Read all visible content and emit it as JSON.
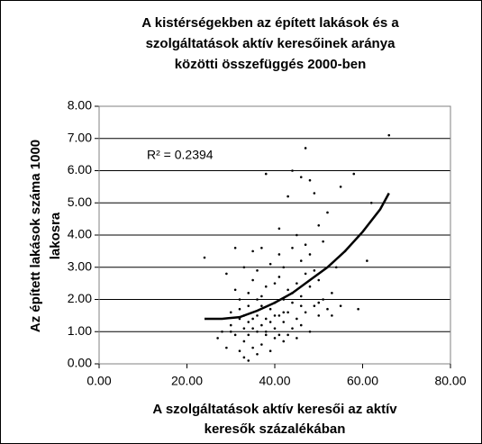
{
  "chart_data": {
    "type": "scatter",
    "title": [
      "A kistérségekben az épített lakások és a",
      "szolgáltatások aktív keresőinek aránya",
      "közötti összefüggés 2000-ben"
    ],
    "ylabel": [
      "Az épített lakások száma 1000",
      "lakosra"
    ],
    "xlabel": [
      "A szolgáltatások aktív keresői az aktív",
      "keresők százalékában"
    ],
    "annotation": "R² = 0.2394",
    "color": "#000000",
    "grid": true,
    "xlim": [
      0,
      80
    ],
    "ylim": [
      0,
      8
    ],
    "xticks": [
      {
        "value": 0,
        "label": "0.00"
      },
      {
        "value": 20,
        "label": "20.00"
      },
      {
        "value": 40,
        "label": "40.00"
      },
      {
        "value": 60,
        "label": "60.00"
      },
      {
        "value": 80,
        "label": "80.00"
      }
    ],
    "yticks": [
      {
        "value": 0,
        "label": "0.00"
      },
      {
        "value": 1,
        "label": "1.00"
      },
      {
        "value": 2,
        "label": "2.00"
      },
      {
        "value": 3,
        "label": "3.00"
      },
      {
        "value": 4,
        "label": "4.00"
      },
      {
        "value": 5,
        "label": "5.00"
      },
      {
        "value": 6,
        "label": "6.00"
      },
      {
        "value": 7,
        "label": "7.00"
      },
      {
        "value": 8,
        "label": "8.00"
      }
    ],
    "x": [
      24,
      27,
      28,
      29,
      29,
      30,
      30,
      31,
      31,
      31,
      32,
      32,
      32,
      33,
      33,
      33,
      33,
      34,
      34,
      34,
      34,
      35,
      35,
      35,
      35,
      36,
      36,
      36,
      36,
      37,
      37,
      37,
      37,
      38,
      38,
      38,
      38,
      39,
      39,
      39,
      40,
      40,
      40,
      40,
      41,
      41,
      41,
      41,
      42,
      42,
      42,
      42,
      43,
      43,
      43,
      43,
      44,
      44,
      44,
      44,
      45,
      45,
      45,
      45,
      46,
      46,
      46,
      46,
      47,
      47,
      47,
      47,
      48,
      48,
      48,
      48,
      49,
      49,
      49,
      50,
      50,
      50,
      51,
      51,
      52,
      52,
      53,
      54,
      55,
      55,
      56,
      58,
      59,
      61,
      62,
      66,
      30,
      32,
      34,
      36,
      38,
      39,
      40,
      42,
      44,
      46,
      50,
      53,
      33,
      35,
      37,
      41
    ],
    "y": [
      3.3,
      0.8,
      1.0,
      2.8,
      0.5,
      1.2,
      1.6,
      3.6,
      2.3,
      0.9,
      0.4,
      1.4,
      2.0,
      0.2,
      1.1,
      3.0,
      0.7,
      2.2,
      1.3,
      0.1,
      1.8,
      1.4,
      2.6,
      0.5,
      3.5,
      1.0,
      1.5,
      0.3,
      2.9,
      1.2,
      2.1,
      0.6,
      3.6,
      5.9,
      1.4,
      2.4,
      0.9,
      1.7,
      3.1,
      0.4,
      2.5,
      1.1,
      1.9,
      0.8,
      4.2,
      3.4,
      1.5,
      2.7,
      1.3,
      0.7,
      2.0,
      3.0,
      1.6,
      5.2,
      0.9,
      2.3,
      6.0,
      1.1,
      3.6,
      1.9,
      2.5,
      4.0,
      0.8,
      1.4,
      3.2,
      5.8,
      2.1,
      1.2,
      6.7,
      3.7,
      2.8,
      1.6,
      5.7,
      2.4,
      1.0,
      3.4,
      2.9,
      5.3,
      1.8,
      4.3,
      1.5,
      2.6,
      3.8,
      2.0,
      1.7,
      4.7,
      2.2,
      3.0,
      5.5,
      1.8,
      3.5,
      5.9,
      1.7,
      3.2,
      5.0,
      7.1,
      1.0,
      1.7,
      0.9,
      2.0,
      1.0,
      1.3,
      1.5,
      1.6,
      2.2,
      1.8,
      1.9,
      1.5,
      1.5,
      1.1,
      1.8,
      0.9
    ],
    "trendline": {
      "x": [
        24,
        28,
        32,
        36,
        40,
        44,
        48,
        52,
        56,
        60,
        64,
        66
      ],
      "y": [
        1.4,
        1.4,
        1.45,
        1.65,
        1.9,
        2.2,
        2.6,
        3.0,
        3.5,
        4.1,
        4.8,
        5.3
      ]
    }
  }
}
